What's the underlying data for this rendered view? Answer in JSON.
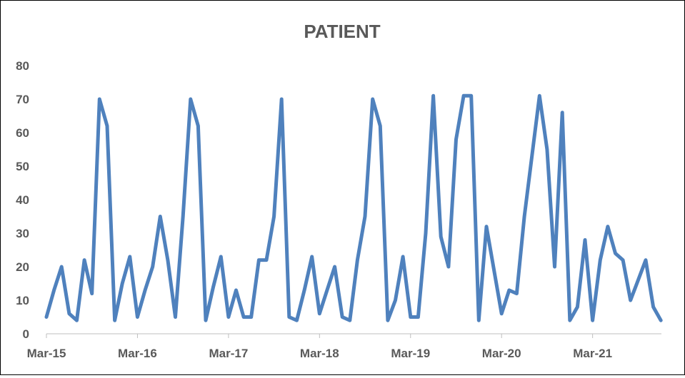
{
  "chart_data": {
    "type": "line",
    "title": "PATIENT",
    "xlabel": "",
    "ylabel": "",
    "ylim": [
      0,
      80
    ],
    "yticks": [
      "0",
      "10",
      "20",
      "30",
      "40",
      "50",
      "60",
      "70",
      "80"
    ],
    "xtick_labels": [
      "Mar-15",
      "Mar-16",
      "Mar-17",
      "Mar-18",
      "Mar-19",
      "Mar-20",
      "Mar-21"
    ],
    "grid": false,
    "legend": "none",
    "line_color": "#4f81bd",
    "series": [
      {
        "x": [
          "2015-03",
          "2015-04",
          "2015-05",
          "2015-06",
          "2015-07",
          "2015-08",
          "2015-09",
          "2015-10",
          "2015-11",
          "2015-12",
          "2016-01",
          "2016-02",
          "2016-03",
          "2016-04",
          "2016-05",
          "2016-06",
          "2016-07",
          "2016-08",
          "2016-09",
          "2016-10",
          "2016-11",
          "2016-12",
          "2017-01",
          "2017-02",
          "2017-03",
          "2017-04",
          "2017-05",
          "2017-06",
          "2017-07",
          "2017-08",
          "2017-09",
          "2017-10",
          "2017-11",
          "2017-12",
          "2018-01",
          "2018-02",
          "2018-03",
          "2018-04",
          "2018-05",
          "2018-06",
          "2018-07",
          "2018-08",
          "2018-09",
          "2018-10",
          "2018-11",
          "2018-12",
          "2019-01",
          "2019-02",
          "2019-03",
          "2019-04",
          "2019-05",
          "2019-06",
          "2019-07",
          "2019-08",
          "2019-09",
          "2019-10",
          "2019-11",
          "2019-12",
          "2020-01",
          "2020-02",
          "2020-03",
          "2020-04",
          "2020-05",
          "2020-06",
          "2020-07",
          "2020-08",
          "2020-09",
          "2020-10",
          "2020-11",
          "2020-12",
          "2021-01",
          "2021-02",
          "2021-03",
          "2021-04",
          "2021-05",
          "2021-06",
          "2021-07",
          "2021-08",
          "2021-09",
          "2021-10",
          "2021-11",
          "2021-12"
        ],
        "values": [
          5,
          13,
          20,
          6,
          4,
          22,
          12,
          70,
          62,
          4,
          15,
          23,
          5,
          13,
          20,
          35,
          22,
          5,
          35,
          70,
          62,
          4,
          14,
          23,
          5,
          13,
          5,
          5,
          22,
          22,
          35,
          70,
          5,
          4,
          13,
          23,
          6,
          13,
          20,
          5,
          4,
          22,
          35,
          70,
          62,
          4,
          10,
          23,
          5,
          5,
          30,
          71,
          29,
          20,
          58,
          71,
          71,
          4,
          32,
          19,
          6,
          13,
          12,
          35,
          53,
          71,
          55,
          20,
          66,
          4,
          8,
          28,
          4,
          22,
          32,
          24,
          22,
          10,
          16,
          22,
          8,
          4
        ]
      }
    ]
  }
}
